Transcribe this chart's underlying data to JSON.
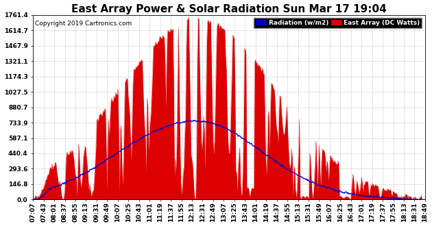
{
  "title": "East Array Power & Solar Radiation Sun Mar 17 19:04",
  "copyright": "Copyright 2019 Cartronics.com",
  "yticks": [
    0.0,
    146.8,
    293.6,
    440.4,
    587.1,
    733.9,
    880.7,
    1027.5,
    1174.3,
    1321.1,
    1467.9,
    1614.7,
    1761.4
  ],
  "ymax": 1761.4,
  "legend_radiation_label": "Radiation (w/m2)",
  "legend_east_label": "East Array (DC Watts)",
  "legend_radiation_bg": "#0000bb",
  "legend_east_bg": "#dd0000",
  "background_color": "#ffffff",
  "plot_bg": "#ffffff",
  "grid_color": "#bbbbbb",
  "bar_color": "#dd0000",
  "line_color": "#0000cc",
  "title_fontsize": 11,
  "copyright_fontsize": 6.5,
  "tick_fontsize": 6.5,
  "time_labels": [
    "07:07",
    "07:43",
    "08:01",
    "08:37",
    "08:55",
    "09:13",
    "09:31",
    "09:49",
    "10:07",
    "10:25",
    "10:43",
    "11:01",
    "11:19",
    "11:37",
    "11:55",
    "12:13",
    "12:31",
    "12:49",
    "13:07",
    "13:25",
    "13:43",
    "14:01",
    "14:19",
    "14:37",
    "14:55",
    "15:13",
    "15:31",
    "15:49",
    "16:07",
    "16:25",
    "16:43",
    "17:01",
    "17:19",
    "17:37",
    "17:55",
    "18:13",
    "18:31",
    "18:49"
  ]
}
